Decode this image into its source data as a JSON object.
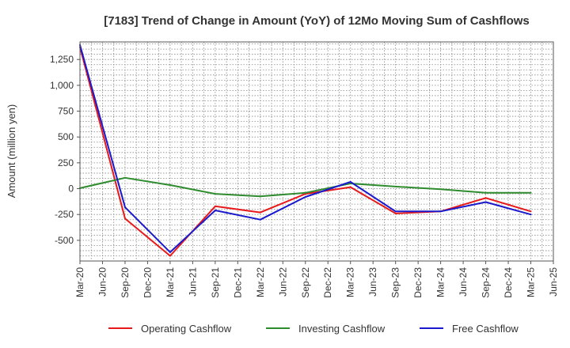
{
  "chart_data": {
    "type": "line",
    "title": "[7183]  Trend of Change in Amount (YoY) of 12Mo Moving Sum of Cashflows",
    "xlabel": "",
    "ylabel": "Amount (million yen)",
    "ylim": [
      -700,
      1420
    ],
    "yticks": [
      -500,
      -250,
      0,
      250,
      500,
      750,
      1000,
      1250
    ],
    "ytick_labels": [
      "-500",
      "-250",
      "0",
      "250",
      "500",
      "750",
      "1,000",
      "1,250"
    ],
    "categories": [
      "Mar-20",
      "Jun-20",
      "Sep-20",
      "Dec-20",
      "Mar-21",
      "Jun-21",
      "Sep-21",
      "Dec-21",
      "Mar-22",
      "Jun-22",
      "Sep-22",
      "Dec-22",
      "Mar-23",
      "Jun-23",
      "Sep-23",
      "Dec-23",
      "Mar-24",
      "Jun-24",
      "Sep-24",
      "Dec-24",
      "Mar-25",
      "Jun-25"
    ],
    "series": [
      {
        "name": "Operating Cashflow",
        "color": "#e8191b",
        "values": [
          1370,
          null,
          -290,
          null,
          -650,
          null,
          -170,
          null,
          -230,
          null,
          -50,
          null,
          15,
          null,
          -240,
          null,
          -220,
          null,
          -90,
          null,
          -220,
          null
        ]
      },
      {
        "name": "Investing Cashflow",
        "color": "#2e8b2e",
        "values": [
          5,
          null,
          105,
          null,
          35,
          null,
          -50,
          null,
          -75,
          null,
          -40,
          null,
          50,
          null,
          20,
          null,
          -5,
          null,
          -40,
          null,
          -40,
          null
        ]
      },
      {
        "name": "Free Cashflow",
        "color": "#1a1acc",
        "values": [
          1390,
          null,
          -180,
          null,
          -615,
          null,
          -210,
          null,
          -300,
          null,
          -80,
          null,
          65,
          null,
          -220,
          null,
          -220,
          null,
          -130,
          null,
          -250,
          null
        ]
      }
    ],
    "legend": "bottom",
    "grid": true
  }
}
